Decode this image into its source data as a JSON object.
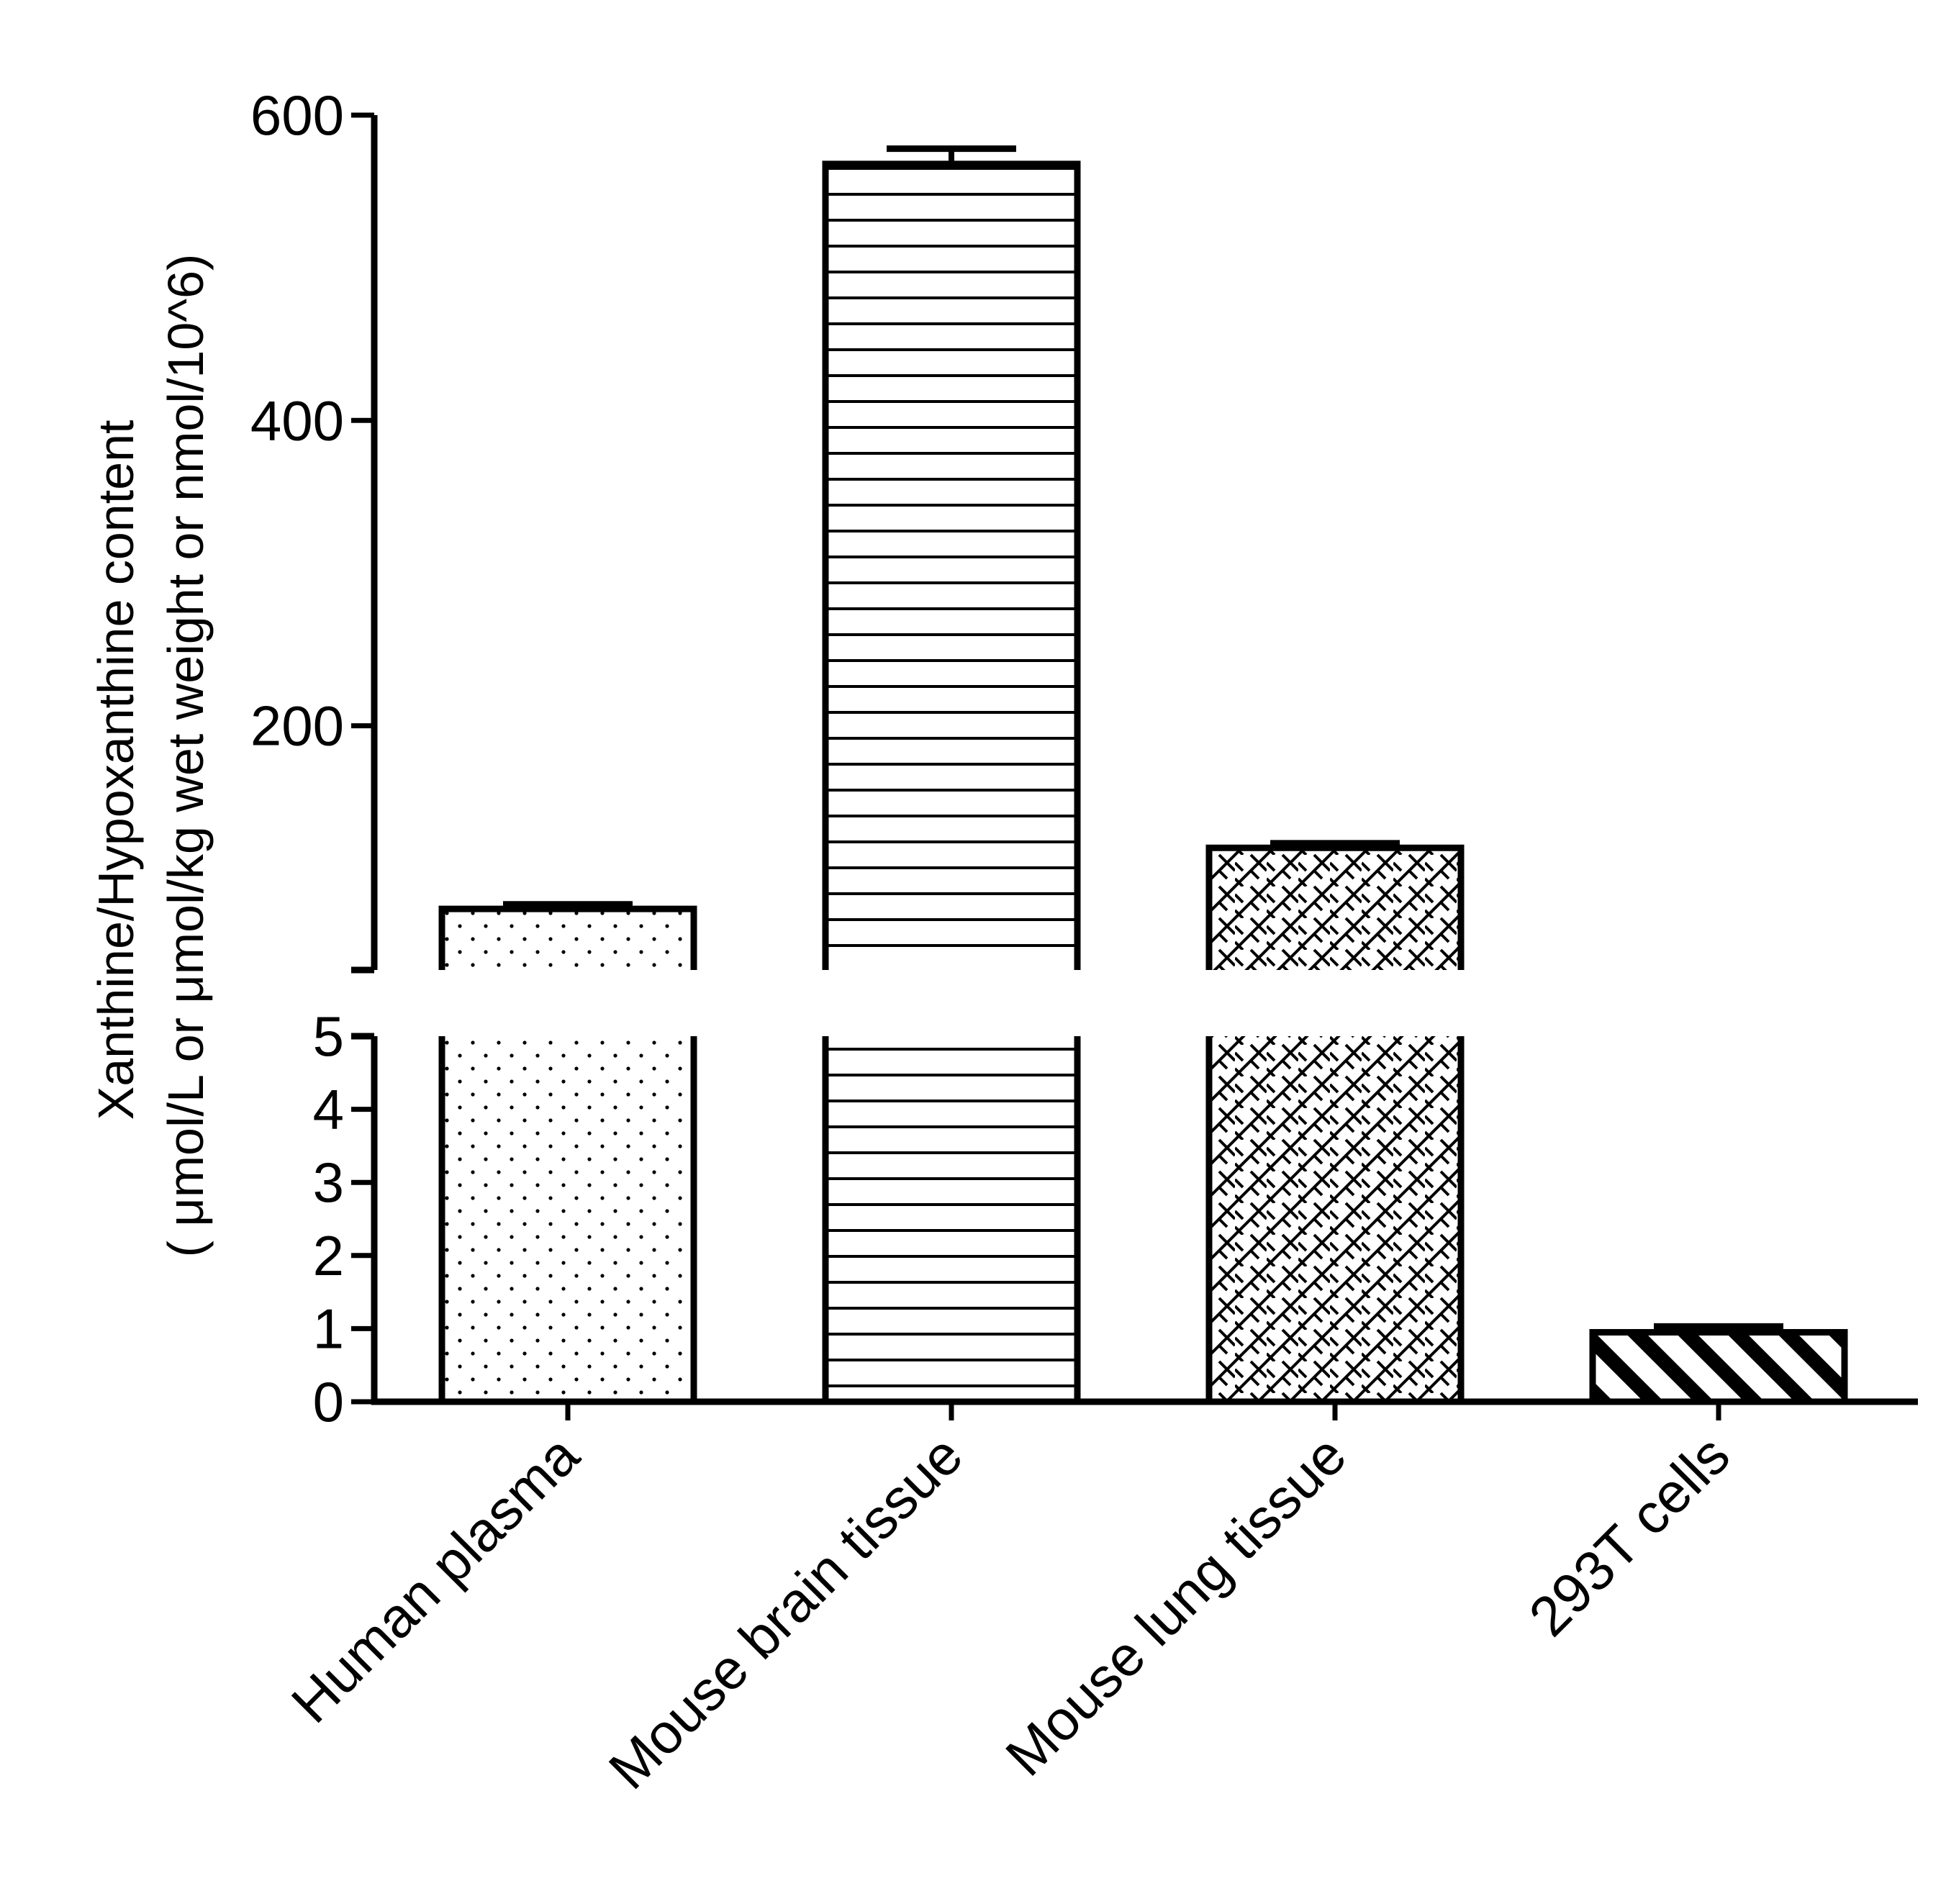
{
  "chart_data": {
    "type": "bar",
    "categories": [
      "Human plasma",
      "Mouse brain tissue",
      "Mouse lung tissue",
      "293T cells"
    ],
    "values": [
      80,
      568,
      120,
      0.95
    ],
    "errors": [
      3,
      10,
      3,
      0.08
    ],
    "patterns": [
      "dots",
      "horizontal-lines",
      "crosshatch",
      "diagonal-stripes"
    ],
    "ylabel_line1": "Xanthine/Hypoxanthine content",
    "ylabel_line2": "( μmol/L or μmol/kg wet weight or nmol/10^6)",
    "axis_break": true,
    "lower_segment": {
      "ylim": [
        0,
        5
      ],
      "ticks": [
        "0",
        "1",
        "2",
        "3",
        "4",
        "5"
      ]
    },
    "upper_segment": {
      "ylim": [
        40,
        600
      ],
      "ticks": [
        "200",
        "400",
        "600"
      ]
    },
    "bar_color": "#000000",
    "fill_color": "#ffffff"
  }
}
